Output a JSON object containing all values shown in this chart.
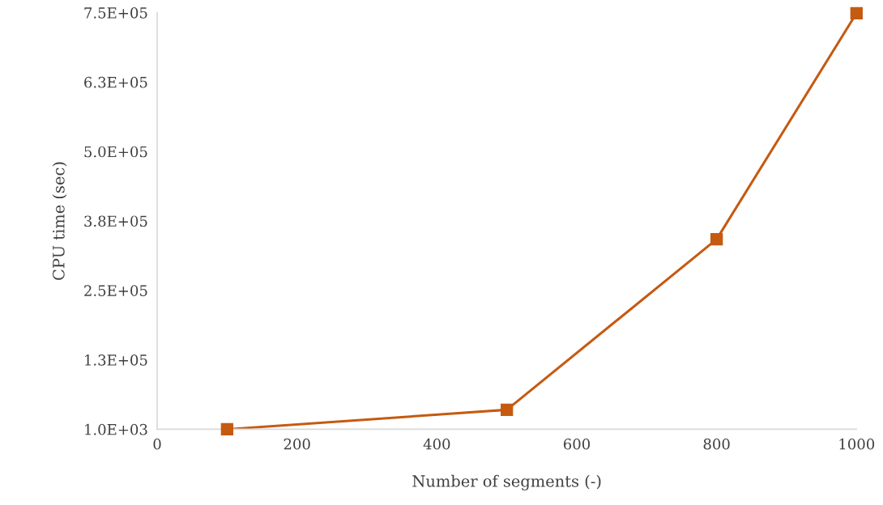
{
  "chart_data": {
    "type": "line",
    "xlabel": "Number of segments (-)",
    "ylabel": "CPU time (sec)",
    "x": [
      100,
      500,
      800,
      1000
    ],
    "series": [
      {
        "color": "#c55a11",
        "values": [
          1000,
          36000,
          343000,
          750000
        ]
      }
    ],
    "xlim": [
      0,
      1000
    ],
    "xticks": [
      0,
      200,
      400,
      600,
      800,
      1000
    ],
    "ylim": [
      1000,
      751000
    ],
    "yticks": [
      {
        "value": 1000,
        "label": "1.0E+03"
      },
      {
        "value": 126000,
        "label": "1.3E+05"
      },
      {
        "value": 251000,
        "label": "2.5E+05"
      },
      {
        "value": 376000,
        "label": "3.8E+05"
      },
      {
        "value": 501000,
        "label": "5.0E+05"
      },
      {
        "value": 626000,
        "label": "6.3E+05"
      },
      {
        "value": 751000,
        "label": "7.5E+05"
      }
    ],
    "marker": "square",
    "line_style": "solid",
    "grid": false,
    "legend": false
  }
}
